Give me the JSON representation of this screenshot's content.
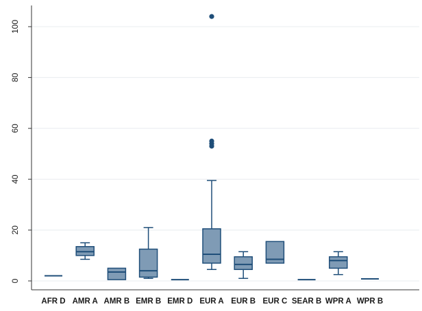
{
  "chart_data": {
    "type": "box",
    "title": "",
    "xlabel": "",
    "ylabel": "",
    "ylim": [
      -3,
      108
    ],
    "yticks": [
      0,
      20,
      40,
      60,
      80,
      100
    ],
    "grid": true,
    "legend": "none",
    "colors": {
      "box_fill": "#7f9bb5",
      "box_stroke": "#1f4e79",
      "grid": "#e8ecef",
      "axis": "#333333"
    },
    "categories": [
      "AFR D",
      "AMR A",
      "AMR B",
      "EMR B",
      "EMR D",
      "EUR A",
      "EUR B",
      "EUR C",
      "SEAR B",
      "WPR A",
      "WPR B"
    ],
    "boxes": [
      {
        "category": "AFR D",
        "min": 2,
        "q1": 2,
        "median": 2,
        "q3": 2,
        "max": 2,
        "outliers": []
      },
      {
        "category": "AMR A",
        "min": 8.5,
        "q1": 10,
        "median": 11.5,
        "q3": 13.5,
        "max": 15,
        "outliers": []
      },
      {
        "category": "AMR B",
        "min": 0.5,
        "q1": 0.5,
        "median": 3.5,
        "q3": 5,
        "max": 5,
        "outliers": []
      },
      {
        "category": "EMR B",
        "min": 1,
        "q1": 1.5,
        "median": 4,
        "q3": 12.5,
        "max": 21,
        "outliers": []
      },
      {
        "category": "EMR D",
        "min": 0.5,
        "q1": 0.5,
        "median": 0.5,
        "q3": 0.5,
        "max": 0.5,
        "outliers": []
      },
      {
        "category": "EUR A",
        "min": 4.5,
        "q1": 7,
        "median": 10.5,
        "q3": 20.5,
        "max": 39.5,
        "outliers": [
          53,
          54,
          55,
          104
        ]
      },
      {
        "category": "EUR B",
        "min": 1,
        "q1": 4.5,
        "median": 6.5,
        "q3": 9.5,
        "max": 11.5,
        "outliers": []
      },
      {
        "category": "EUR C",
        "min": 7,
        "q1": 7,
        "median": 8.5,
        "q3": 15.5,
        "max": 15.5,
        "outliers": []
      },
      {
        "category": "SEAR B",
        "min": 0.5,
        "q1": 0.5,
        "median": 0.5,
        "q3": 0.5,
        "max": 0.5,
        "outliers": []
      },
      {
        "category": "WPR A",
        "min": 2.5,
        "q1": 5,
        "median": 8,
        "q3": 9.5,
        "max": 11.5,
        "outliers": []
      },
      {
        "category": "WPR B",
        "min": 0.8,
        "q1": 0.8,
        "median": 0.8,
        "q3": 0.8,
        "max": 0.8,
        "outliers": []
      }
    ]
  }
}
